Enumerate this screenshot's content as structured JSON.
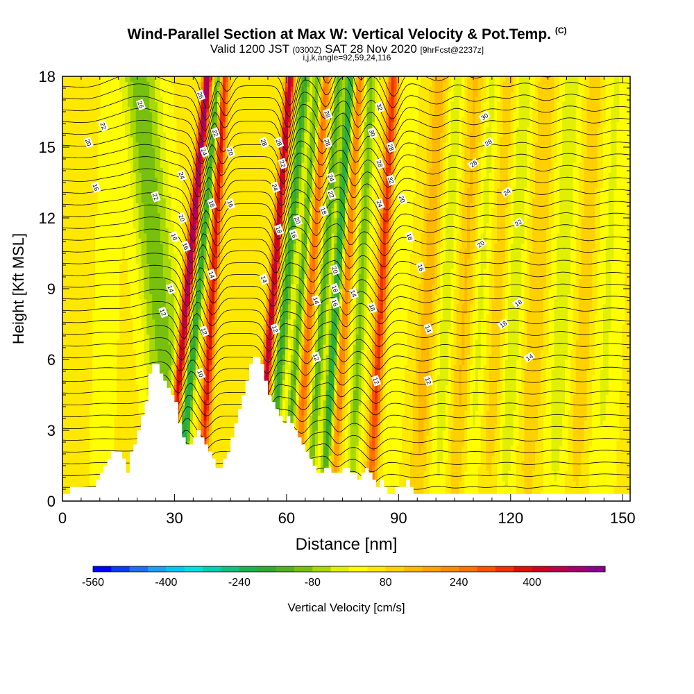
{
  "header": {
    "title": "Wind-Parallel Section at Max W: Vertical Velocity & Pot.Temp.",
    "title_mark": "(C)",
    "valid_prefix": "Valid 1200 JST",
    "valid_z": "(0300Z)",
    "valid_date": "SAT 28 Nov 2020",
    "valid_fcst": "[9hrFcst@2237z]",
    "indices": "i,j,k,angle=92,59,24,116"
  },
  "chart_data": {
    "type": "heatmap",
    "xlabel": "Distance [nm]",
    "ylabel": "Height [Kft MSL]",
    "xlim": [
      0,
      152
    ],
    "ylim": [
      0,
      18
    ],
    "x_ticks": [
      0,
      30,
      60,
      90,
      120,
      150
    ],
    "y_ticks": [
      0,
      3,
      6,
      9,
      12,
      15,
      18
    ],
    "colorbar": {
      "label": "Vertical Velocity [cm/s]",
      "range": [
        -560,
        560
      ],
      "step": 40,
      "tick_values": [
        -560,
        -400,
        -240,
        -80,
        80,
        240,
        400
      ],
      "tick_labels": [
        "-560",
        "-400",
        "-240",
        "-80",
        "80",
        "240",
        "400"
      ],
      "colors": [
        "#0000ff",
        "#0a3cf2",
        "#1e6ff0",
        "#1f9ff0",
        "#00c8f0",
        "#00e0e0",
        "#00d0b0",
        "#10c080",
        "#20b050",
        "#30aa30",
        "#50b020",
        "#78c010",
        "#a8d800",
        "#e0f000",
        "#ffff00",
        "#ffe800",
        "#ffd000",
        "#ffb800",
        "#ffa000",
        "#ff8800",
        "#ff7000",
        "#ff5000",
        "#f03000",
        "#e01000",
        "#d00020",
        "#b8004a",
        "#a00070",
        "#880090"
      ]
    },
    "terrain_profile_kft": [
      [
        0,
        0.3
      ],
      [
        2,
        0.3
      ],
      [
        2,
        0.6
      ],
      [
        9,
        0.6
      ],
      [
        9,
        0.9
      ],
      [
        10,
        0.9
      ],
      [
        10,
        1.2
      ],
      [
        11,
        1.2
      ],
      [
        11,
        1.5
      ],
      [
        12,
        1.5
      ],
      [
        12,
        1.8
      ],
      [
        13,
        1.8
      ],
      [
        13,
        2.1
      ],
      [
        16,
        2.1
      ],
      [
        16,
        1.8
      ],
      [
        17,
        1.8
      ],
      [
        17,
        1.2
      ],
      [
        18,
        1.2
      ],
      [
        18,
        2.1
      ],
      [
        19,
        2.1
      ],
      [
        19,
        2.4
      ],
      [
        20,
        2.4
      ],
      [
        20,
        3.0
      ],
      [
        21,
        3.0
      ],
      [
        21,
        3.6
      ],
      [
        22,
        3.6
      ],
      [
        22,
        4.2
      ],
      [
        23,
        4.2
      ],
      [
        23,
        5.4
      ],
      [
        24,
        5.4
      ],
      [
        24,
        5.8
      ],
      [
        26,
        5.8
      ],
      [
        26,
        5.4
      ],
      [
        27,
        5.4
      ],
      [
        27,
        5.1
      ],
      [
        28,
        5.1
      ],
      [
        28,
        4.8
      ],
      [
        29,
        4.8
      ],
      [
        29,
        4.5
      ],
      [
        30,
        4.5
      ],
      [
        30,
        4.2
      ],
      [
        31,
        4.2
      ],
      [
        31,
        3.3
      ],
      [
        32,
        3.3
      ],
      [
        32,
        2.7
      ],
      [
        33,
        2.7
      ],
      [
        33,
        2.4
      ],
      [
        35,
        2.4
      ],
      [
        35,
        2.7
      ],
      [
        36,
        2.7
      ],
      [
        36,
        3.0
      ],
      [
        37,
        3.0
      ],
      [
        37,
        2.7
      ],
      [
        38,
        2.7
      ],
      [
        38,
        2.4
      ],
      [
        39,
        2.4
      ],
      [
        39,
        2.1
      ],
      [
        40,
        2.1
      ],
      [
        40,
        1.8
      ],
      [
        41,
        1.8
      ],
      [
        41,
        1.4
      ],
      [
        43,
        1.4
      ],
      [
        43,
        1.8
      ],
      [
        44,
        1.8
      ],
      [
        44,
        2.1
      ],
      [
        45,
        2.1
      ],
      [
        45,
        2.7
      ],
      [
        46,
        2.7
      ],
      [
        46,
        3.3
      ],
      [
        47,
        3.3
      ],
      [
        47,
        3.9
      ],
      [
        48,
        3.9
      ],
      [
        48,
        4.5
      ],
      [
        49,
        4.5
      ],
      [
        49,
        5.1
      ],
      [
        50,
        5.1
      ],
      [
        50,
        5.8
      ],
      [
        51,
        5.8
      ],
      [
        51,
        6.1
      ],
      [
        53,
        6.1
      ],
      [
        53,
        5.8
      ],
      [
        54,
        5.8
      ],
      [
        54,
        5.1
      ],
      [
        55,
        5.1
      ],
      [
        55,
        4.5
      ],
      [
        56,
        4.5
      ],
      [
        56,
        4.2
      ],
      [
        57,
        4.2
      ],
      [
        57,
        3.9
      ],
      [
        58,
        3.9
      ],
      [
        58,
        3.6
      ],
      [
        59,
        3.6
      ],
      [
        59,
        3.3
      ],
      [
        60,
        3.3
      ],
      [
        60,
        3.6
      ],
      [
        61,
        3.6
      ],
      [
        61,
        3.3
      ],
      [
        62,
        3.3
      ],
      [
        62,
        3.0
      ],
      [
        63,
        3.0
      ],
      [
        63,
        2.7
      ],
      [
        64,
        2.7
      ],
      [
        64,
        2.4
      ],
      [
        65,
        2.4
      ],
      [
        65,
        2.1
      ],
      [
        66,
        2.1
      ],
      [
        66,
        1.8
      ],
      [
        67,
        1.8
      ],
      [
        67,
        1.5
      ],
      [
        68,
        1.5
      ],
      [
        68,
        1.2
      ],
      [
        70,
        1.2
      ],
      [
        70,
        1.4
      ],
      [
        72,
        1.4
      ],
      [
        72,
        1.2
      ],
      [
        75,
        1.2
      ],
      [
        75,
        1.4
      ],
      [
        77,
        1.4
      ],
      [
        77,
        1.2
      ],
      [
        79,
        1.2
      ],
      [
        79,
        0.9
      ],
      [
        80,
        0.9
      ],
      [
        80,
        1.2
      ],
      [
        81,
        1.2
      ],
      [
        81,
        1.4
      ],
      [
        82,
        1.4
      ],
      [
        82,
        1.2
      ],
      [
        83,
        1.2
      ],
      [
        83,
        0.9
      ],
      [
        84,
        0.9
      ],
      [
        84,
        0.6
      ],
      [
        85,
        0.6
      ],
      [
        85,
        0.9
      ],
      [
        86,
        0.9
      ],
      [
        86,
        0.6
      ],
      [
        87,
        0.6
      ],
      [
        87,
        0.3
      ],
      [
        89,
        0.3
      ],
      [
        89,
        0.6
      ],
      [
        92,
        0.6
      ],
      [
        92,
        0.9
      ],
      [
        93,
        0.9
      ],
      [
        93,
        0.6
      ],
      [
        94,
        0.6
      ],
      [
        94,
        0.3
      ],
      [
        96,
        0.3
      ],
      [
        96,
        0.3
      ],
      [
        152,
        0.3
      ]
    ],
    "theta_contour_labels": [
      {
        "text": "26",
        "x": 21,
        "y": 16.8
      },
      {
        "text": "22",
        "x": 11,
        "y": 15.9
      },
      {
        "text": "20",
        "x": 7,
        "y": 15.2
      },
      {
        "text": "16",
        "x": 9,
        "y": 13.3
      },
      {
        "text": "26",
        "x": 37,
        "y": 17.2
      },
      {
        "text": "22",
        "x": 41,
        "y": 15.6
      },
      {
        "text": "24",
        "x": 38,
        "y": 14.8
      },
      {
        "text": "20",
        "x": 45,
        "y": 14.8
      },
      {
        "text": "24",
        "x": 32,
        "y": 13.8
      },
      {
        "text": "22",
        "x": 25,
        "y": 12.9
      },
      {
        "text": "20",
        "x": 32,
        "y": 12.0
      },
      {
        "text": "16",
        "x": 45,
        "y": 12.6
      },
      {
        "text": "18",
        "x": 40,
        "y": 12.6
      },
      {
        "text": "16",
        "x": 30,
        "y": 11.2
      },
      {
        "text": "16",
        "x": 33,
        "y": 10.8
      },
      {
        "text": "14",
        "x": 40,
        "y": 9.6
      },
      {
        "text": "14",
        "x": 29,
        "y": 9.0
      },
      {
        "text": "12",
        "x": 27,
        "y": 8.0
      },
      {
        "text": "12",
        "x": 38,
        "y": 7.2
      },
      {
        "text": "10",
        "x": 37,
        "y": 5.4
      },
      {
        "text": "28",
        "x": 54,
        "y": 15.2
      },
      {
        "text": "28",
        "x": 58,
        "y": 15.2
      },
      {
        "text": "22",
        "x": 59,
        "y": 14.3
      },
      {
        "text": "24",
        "x": 57,
        "y": 13.3
      },
      {
        "text": "18",
        "x": 58,
        "y": 11.5
      },
      {
        "text": "20",
        "x": 63,
        "y": 11.9
      },
      {
        "text": "16",
        "x": 62,
        "y": 11.3
      },
      {
        "text": "14",
        "x": 54,
        "y": 9.4
      },
      {
        "text": "12",
        "x": 57,
        "y": 7.3
      },
      {
        "text": "28",
        "x": 71,
        "y": 16.4
      },
      {
        "text": "28",
        "x": 71,
        "y": 15.2
      },
      {
        "text": "24",
        "x": 72,
        "y": 13.7
      },
      {
        "text": "22",
        "x": 72,
        "y": 13.0
      },
      {
        "text": "18",
        "x": 70,
        "y": 12.3
      },
      {
        "text": "20",
        "x": 73,
        "y": 9.8
      },
      {
        "text": "18",
        "x": 73,
        "y": 9.0
      },
      {
        "text": "16",
        "x": 73,
        "y": 8.4
      },
      {
        "text": "14",
        "x": 68,
        "y": 8.5
      },
      {
        "text": "12",
        "x": 68,
        "y": 6.1
      },
      {
        "text": "14",
        "x": 78,
        "y": 8.8
      },
      {
        "text": "32",
        "x": 85,
        "y": 16.7
      },
      {
        "text": "30",
        "x": 83,
        "y": 15.6
      },
      {
        "text": "28",
        "x": 88,
        "y": 15.0
      },
      {
        "text": "28",
        "x": 85,
        "y": 14.3
      },
      {
        "text": "32",
        "x": 88,
        "y": 13.6
      },
      {
        "text": "24",
        "x": 85,
        "y": 12.6
      },
      {
        "text": "20",
        "x": 91,
        "y": 12.8
      },
      {
        "text": "18",
        "x": 93,
        "y": 11.2
      },
      {
        "text": "16",
        "x": 96,
        "y": 9.9
      },
      {
        "text": "18",
        "x": 83,
        "y": 8.2
      },
      {
        "text": "14",
        "x": 98,
        "y": 7.3
      },
      {
        "text": "12",
        "x": 84,
        "y": 5.1
      },
      {
        "text": "12",
        "x": 98,
        "y": 5.1
      },
      {
        "text": "30",
        "x": 113,
        "y": 16.3
      },
      {
        "text": "28",
        "x": 114,
        "y": 15.2
      },
      {
        "text": "28",
        "x": 110,
        "y": 14.3
      },
      {
        "text": "24",
        "x": 119,
        "y": 13.1
      },
      {
        "text": "22",
        "x": 122,
        "y": 11.8
      },
      {
        "text": "20",
        "x": 112,
        "y": 10.9
      },
      {
        "text": "18",
        "x": 122,
        "y": 8.4
      },
      {
        "text": "18",
        "x": 118,
        "y": 7.5
      },
      {
        "text": "14",
        "x": 125,
        "y": 6.1
      }
    ]
  }
}
